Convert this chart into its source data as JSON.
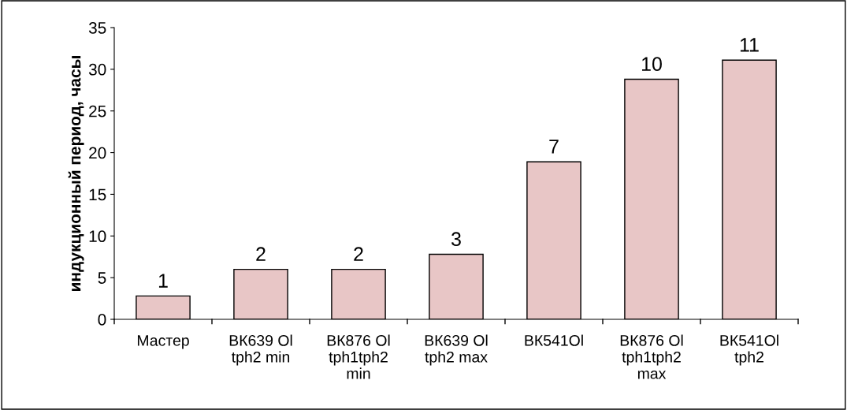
{
  "chart_data": {
    "type": "bar",
    "ylabel": "индукционный период, часы",
    "categories": [
      "Мастер",
      "ВК639 Ol\ntph2 min",
      "ВК876 Ol\ntph1tph2\nmin",
      "ВК639 Ol\ntph2 max",
      "ВК541Ol",
      "ВК876 Ol\ntph1tph2\nmax",
      "ВК541Ol\ntph2"
    ],
    "values": [
      2.8,
      6.0,
      6.0,
      7.8,
      18.9,
      28.8,
      31.1
    ],
    "annotations": [
      {
        "text": "1",
        "x": "Мастер",
        "y": 2.8
      },
      {
        "text": "2",
        "x": "ВК639 Ol\ntph2 min",
        "y": 6.0
      },
      {
        "text": "2",
        "x": "ВК876 Ol\ntph1tph2\nmin",
        "y": 6.0
      },
      {
        "text": "3",
        "x": "ВК639 Ol\ntph2 max",
        "y": 7.8
      },
      {
        "text": "7",
        "x": "ВК541Ol",
        "y": 18.9
      },
      {
        "text": "10",
        "x": "ВК876 Ol\ntph1tph2\nmax",
        "y": 28.8
      },
      {
        "text": "11",
        "x": "ВК541Ol\ntph2",
        "y": 31.1
      }
    ],
    "color": "#e8c6c6",
    "ylim": [
      0,
      35
    ],
    "yticks": [
      0,
      5,
      10,
      15,
      20,
      25,
      30,
      35
    ],
    "grid": false,
    "legend": false
  }
}
